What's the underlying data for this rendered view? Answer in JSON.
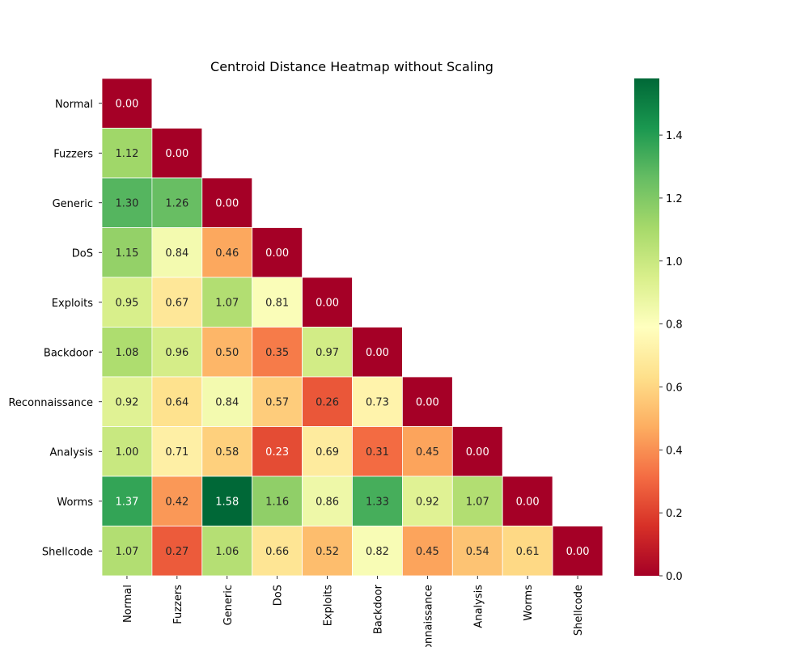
{
  "chart_data": {
    "type": "heatmap",
    "title": "Centroid Distance Heatmap without Scaling",
    "row_labels": [
      "Normal",
      "Fuzzers",
      "Generic",
      "DoS",
      "Exploits",
      "Backdoor",
      "Reconnaissance",
      "Analysis",
      "Worms",
      "Shellcode"
    ],
    "column_labels": [
      "Normal",
      "Fuzzers",
      "Generic",
      "DoS",
      "Exploits",
      "Backdoor",
      "Reconnaissance",
      "Analysis",
      "Worms",
      "Shellcode"
    ],
    "values": [
      [
        0.0
      ],
      [
        1.12,
        0.0
      ],
      [
        1.3,
        1.26,
        0.0
      ],
      [
        1.15,
        0.84,
        0.46,
        0.0
      ],
      [
        0.95,
        0.67,
        1.07,
        0.81,
        0.0
      ],
      [
        1.08,
        0.96,
        0.5,
        0.35,
        0.97,
        0.0
      ],
      [
        0.92,
        0.64,
        0.84,
        0.57,
        0.26,
        0.73,
        0.0
      ],
      [
        1.0,
        0.71,
        0.58,
        0.23,
        0.69,
        0.31,
        0.45,
        0.0
      ],
      [
        1.37,
        0.42,
        1.58,
        1.16,
        0.86,
        1.33,
        0.92,
        1.07,
        0.0
      ],
      [
        1.07,
        0.27,
        1.06,
        0.66,
        0.52,
        0.82,
        0.45,
        0.54,
        0.61,
        0.0
      ]
    ],
    "mask": "upper-triangle",
    "value_format": "2 decimals",
    "colormap": "RdYlGn",
    "colormap_stops": [
      "#a50026",
      "#d73027",
      "#f46d43",
      "#fdae61",
      "#fee08b",
      "#ffffbf",
      "#d9ef8b",
      "#a6d96a",
      "#66bd63",
      "#1a9850",
      "#006837"
    ],
    "vmin": 0.0,
    "vmax": 1.58,
    "colorbar": {
      "ticks": [
        0.0,
        0.2,
        0.4,
        0.6,
        0.8,
        1.0,
        1.2,
        1.4
      ],
      "tick_labels": [
        "0.0",
        "0.2",
        "0.4",
        "0.6",
        "0.8",
        "1.0",
        "1.2",
        "1.4"
      ],
      "placement": "right"
    },
    "grid": "white cell borders"
  }
}
